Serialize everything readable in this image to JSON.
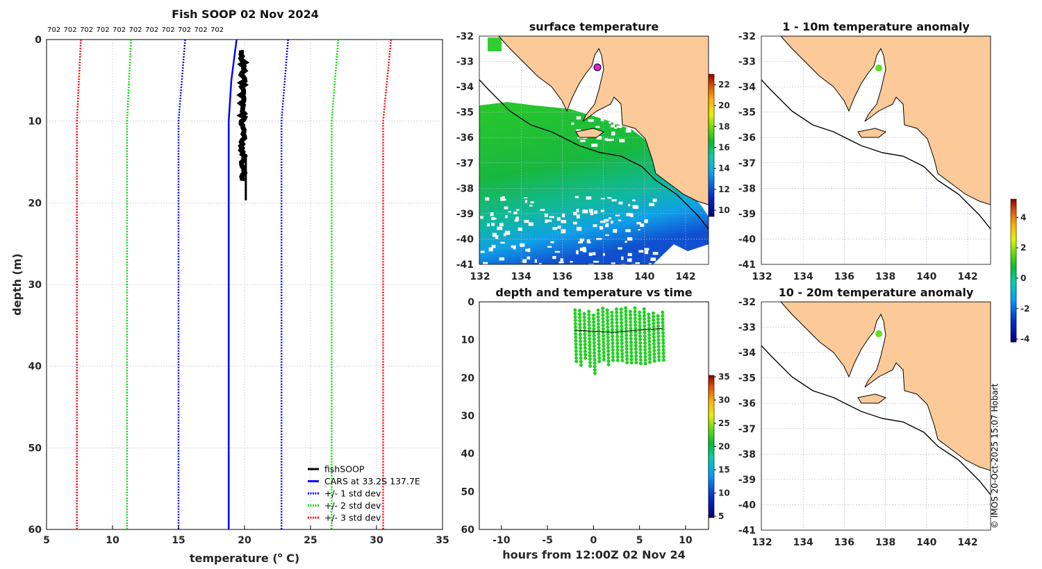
{
  "chart_data": [
    {
      "type": "line",
      "title": "Fish SOOP 02 Nov 2024",
      "header_labels": [
        "702",
        "702",
        "702",
        "702",
        "702",
        "702",
        "702",
        "702",
        "702",
        "702",
        "702"
      ],
      "xlabel": "temperature (",
      "xlabel_sup": "o",
      "xlabel_end": " C)",
      "ylabel": "depth (m)",
      "xlim": [
        5,
        35
      ],
      "ylim": [
        60,
        0
      ],
      "xticks": [
        "5",
        "10",
        "15",
        "20",
        "25",
        "30",
        "35"
      ],
      "yticks": [
        "0",
        "10",
        "20",
        "30",
        "40",
        "50",
        "60"
      ],
      "legend_position": "bottom-right",
      "series": [
        {
          "name": "fishSOOP",
          "color": "#000000",
          "style": "solid",
          "depth": [
            1.3,
            19.7
          ],
          "temp_range": [
            19.6,
            20.1
          ]
        },
        {
          "name": "CARS at 33.2S 137.7E",
          "color": "#0000ff",
          "style": "solid",
          "depth": [
            0,
            5,
            10,
            60
          ],
          "temp": [
            19.4,
            19.0,
            18.8,
            18.8
          ]
        },
        {
          "name": "+/- 1 std dev",
          "color": "#0000ff",
          "style": "dotted",
          "depth": [
            0,
            10,
            60
          ],
          "low": [
            15.5,
            15.0,
            15.0
          ],
          "high": [
            23.3,
            22.8,
            22.8
          ]
        },
        {
          "name": "+/- 2 std dev",
          "color": "#00dd00",
          "style": "dotted",
          "depth": [
            0,
            10,
            60
          ],
          "low": [
            11.4,
            11.1,
            11.1
          ],
          "high": [
            27.1,
            26.6,
            26.6
          ]
        },
        {
          "name": "+/- 3 std dev",
          "color": "#ff0000",
          "style": "dotted",
          "depth": [
            0,
            10,
            60
          ],
          "low": [
            7.6,
            7.3,
            7.3
          ],
          "high": [
            31.1,
            30.5,
            30.5
          ]
        }
      ]
    },
    {
      "type": "heatmap",
      "title": "surface temperature",
      "xlim": [
        132,
        143.1
      ],
      "ylim": [
        -41,
        -32
      ],
      "xticks": [
        "132",
        "134",
        "136",
        "138",
        "140",
        "142"
      ],
      "yticks": [
        "-32",
        "-33",
        "-34",
        "-35",
        "-36",
        "-37",
        "-38",
        "-39",
        "-40",
        "-41"
      ],
      "colorbar_ticks": [
        "10",
        "12",
        "14",
        "16",
        "18",
        "20",
        "22"
      ],
      "colorbar_range": [
        9.4,
        23
      ],
      "marker": {
        "lon": 137.7,
        "lat": -33.2
      }
    },
    {
      "type": "heatmap",
      "title": "1 - 10m temperature anomaly",
      "xlim": [
        132,
        143.1
      ],
      "ylim": [
        -41,
        -32
      ],
      "xticks": [
        "132",
        "134",
        "136",
        "138",
        "140",
        "142"
      ],
      "yticks": [
        "-32",
        "-33",
        "-34",
        "-35",
        "-36",
        "-37",
        "-38",
        "-39",
        "-40",
        "-41"
      ],
      "marker": {
        "lon": 137.7,
        "lat": -33.2,
        "anomaly": 0.5
      }
    },
    {
      "type": "heatmap",
      "title": "10 - 20m temperature anomaly",
      "xlim": [
        132,
        143.1
      ],
      "ylim": [
        -41,
        -32
      ],
      "xticks": [
        "132",
        "134",
        "136",
        "138",
        "140",
        "142"
      ],
      "yticks": [
        "-32",
        "-33",
        "-34",
        "-35",
        "-36",
        "-37",
        "-38",
        "-39",
        "-40",
        "-41"
      ],
      "marker": {
        "lon": 137.7,
        "lat": -33.2,
        "anomaly": 0.8
      },
      "colorbar_ticks": [
        "4",
        "2",
        "0",
        "-2",
        "-4"
      ],
      "colorbar_range": [
        -4.2,
        5.2
      ]
    },
    {
      "type": "scatter",
      "title": "depth and temperature vs time",
      "xlabel": "hours from 12:00Z 02 Nov 24",
      "xlim": [
        -12.4,
        12.5
      ],
      "ylim": [
        60,
        0
      ],
      "xticks": [
        "-10",
        "-5",
        "0",
        "5",
        "10"
      ],
      "yticks": [
        "0",
        "10",
        "20",
        "30",
        "40",
        "50",
        "60"
      ],
      "colorbar_ticks": [
        "35",
        "30",
        "25",
        "20",
        "15",
        "10",
        "5"
      ],
      "colorbar_range": [
        4.7,
        35.3
      ],
      "points_summary": {
        "hours": [
          -2,
          7.5
        ],
        "depth": [
          1.5,
          19.5
        ],
        "temp": 20
      }
    }
  ],
  "credit": "© IMOS 20-Oct-2025 15:07 Hobart",
  "colors": {
    "land": "#fbca98",
    "cars": "#0000ff",
    "fish": "#000000"
  }
}
